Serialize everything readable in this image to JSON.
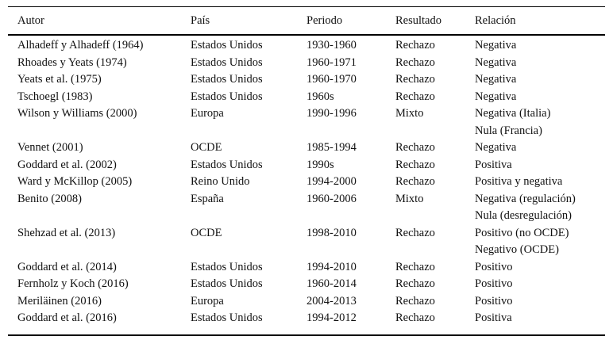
{
  "table": {
    "headers": [
      "Autor",
      "País",
      "Periodo",
      "Resultado",
      "Relación"
    ],
    "rows": [
      {
        "autor": "Alhadeff y Alhadeff (1964)",
        "pais": "Estados Unidos",
        "periodo": "1930-1960",
        "resultado": "Rechazo",
        "relacion": "Negativa"
      },
      {
        "autor": "Rhoades y Yeats (1974)",
        "pais": "Estados Unidos",
        "periodo": "1960-1971",
        "resultado": "Rechazo",
        "relacion": "Negativa"
      },
      {
        "autor": "Yeats et al. (1975)",
        "pais": "Estados Unidos",
        "periodo": "1960-1970",
        "resultado": "Rechazo",
        "relacion": "Negativa"
      },
      {
        "autor": "Tschoegl (1983)",
        "pais": "Estados Unidos",
        "periodo": "1960s",
        "resultado": "Rechazo",
        "relacion": "Negativa"
      },
      {
        "autor": "Wilson y Williams (2000)",
        "pais": "Europa",
        "periodo": "1990-1996",
        "resultado": "Mixto",
        "relacion": "Negativa (Italia)\nNula (Francia)"
      },
      {
        "autor": "Vennet (2001)",
        "pais": "OCDE",
        "periodo": "1985-1994",
        "resultado": "Rechazo",
        "relacion": "Negativa"
      },
      {
        "autor": "Goddard et al. (2002)",
        "pais": "Estados Unidos",
        "periodo": "1990s",
        "resultado": "Rechazo",
        "relacion": "Positiva"
      },
      {
        "autor": "Ward y McKillop (2005)",
        "pais": "Reino Unido",
        "periodo": "1994-2000",
        "resultado": "Rechazo",
        "relacion": "Positiva y negativa"
      },
      {
        "autor": "Benito (2008)",
        "pais": "España",
        "periodo": "1960-2006",
        "resultado": "Mixto",
        "relacion": "Negativa (regulación)\nNula (desregulación)"
      },
      {
        "autor": "Shehzad et al. (2013)",
        "pais": "OCDE",
        "periodo": "1998-2010",
        "resultado": "Rechazo",
        "relacion": "Positivo (no OCDE)\nNegativo (OCDE)"
      },
      {
        "autor": "Goddard et al. (2014)",
        "pais": "Estados Unidos",
        "periodo": "1994-2010",
        "resultado": "Rechazo",
        "relacion": "Positivo"
      },
      {
        "autor": "Fernholz y Koch (2016)",
        "pais": "Estados Unidos",
        "periodo": "1960-2014",
        "resultado": "Rechazo",
        "relacion": "Positivo"
      },
      {
        "autor": "Meriläinen (2016)",
        "pais": "Europa",
        "periodo": "2004-2013",
        "resultado": "Rechazo",
        "relacion": "Positivo"
      },
      {
        "autor": "Goddard et al. (2016)",
        "pais": "Estados Unidos",
        "periodo": "1994-2012",
        "resultado": "Rechazo",
        "relacion": "Positiva"
      }
    ]
  }
}
